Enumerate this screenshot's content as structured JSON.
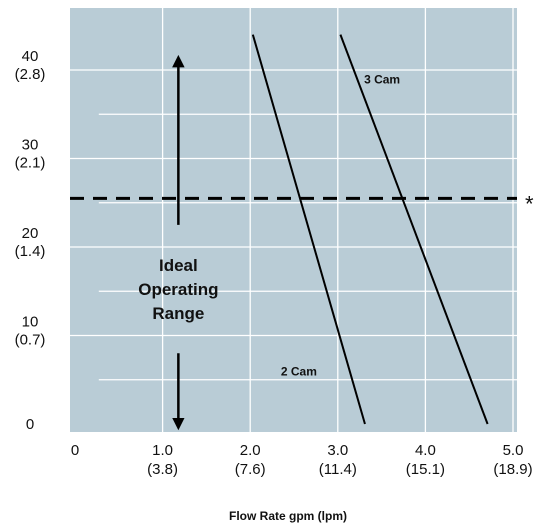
{
  "chart_data": {
    "type": "line",
    "title": "",
    "xlabel": "Flow Rate gpm (lpm)",
    "ylabel": "",
    "xlim": [
      0,
      5
    ],
    "ylim": [
      0,
      46
    ],
    "grid": true,
    "x_ticks": [
      {
        "value": 0,
        "label": "0",
        "sublabel": ""
      },
      {
        "value": 1,
        "label": "1.0",
        "sublabel": "(3.8)"
      },
      {
        "value": 2,
        "label": "2.0",
        "sublabel": "(7.6)"
      },
      {
        "value": 3,
        "label": "3.0",
        "sublabel": "(11.4)"
      },
      {
        "value": 4,
        "label": "4.0",
        "sublabel": "(15.1)"
      },
      {
        "value": 5,
        "label": "5.0",
        "sublabel": "(18.9)"
      }
    ],
    "y_ticks": [
      {
        "value": 0,
        "label": "0",
        "sublabel": ""
      },
      {
        "value": 10,
        "label": "10",
        "sublabel": "(0.7)"
      },
      {
        "value": 20,
        "label": "20",
        "sublabel": "(1.4)"
      },
      {
        "value": 30,
        "label": "30",
        "sublabel": "(2.1)"
      },
      {
        "value": 40,
        "label": "40",
        "sublabel": "(2.8)"
      }
    ],
    "series": [
      {
        "name": "2 Cam",
        "x": [
          2.03,
          3.31
        ],
        "y": [
          44,
          0
        ]
      },
      {
        "name": "3 Cam",
        "x": [
          3.03,
          4.71
        ],
        "y": [
          44,
          0
        ]
      }
    ],
    "reference_line": {
      "y": 25.5,
      "style": "dashed",
      "marker": "*"
    },
    "annotation": {
      "lines": [
        "Ideal",
        "Operating",
        "Range"
      ],
      "x": 1.18,
      "arrow_range": [
        0,
        41
      ]
    },
    "colors": {
      "plot_background": "#b9ccd6",
      "grid": "#ffffff",
      "lines": "#000000"
    }
  }
}
